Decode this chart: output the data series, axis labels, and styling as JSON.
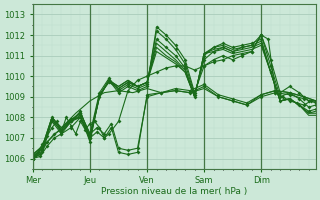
{
  "xlabel": "Pression niveau de la mer( hPa )",
  "ylim": [
    1005.5,
    1013.5
  ],
  "yticks": [
    1006,
    1007,
    1008,
    1009,
    1010,
    1011,
    1012,
    1013
  ],
  "day_labels": [
    "Mer",
    "Jeu",
    "Ven",
    "Sam",
    "Dim"
  ],
  "day_x": [
    0,
    24,
    48,
    72,
    96
  ],
  "xlim": [
    0,
    119
  ],
  "bg_color": "#cce8d8",
  "grid_major_color": "#aaccbb",
  "grid_minor_color": "#bbddcc",
  "line_color": "#1a6b1a",
  "tick_color": "#1a6b1a",
  "series": [
    {
      "x": [
        0,
        4,
        8,
        12,
        16,
        20,
        24,
        28,
        32,
        36,
        40,
        44,
        48,
        52,
        56,
        60,
        64,
        68,
        72,
        76,
        80,
        84,
        88,
        92,
        96,
        100,
        104,
        108,
        112,
        116,
        119
      ],
      "y": [
        1006.0,
        1006.3,
        1007.8,
        1007.2,
        1007.8,
        1008.3,
        1007.0,
        1009.0,
        1009.8,
        1009.2,
        1009.5,
        1009.3,
        1009.5,
        1012.4,
        1012.0,
        1011.5,
        1010.8,
        1009.2,
        1010.5,
        1010.8,
        1011.0,
        1010.8,
        1011.0,
        1011.2,
        1012.0,
        1010.8,
        1009.2,
        1009.5,
        1009.2,
        1008.8,
        1008.8
      ],
      "marker": true
    },
    {
      "x": [
        0,
        4,
        8,
        12,
        16,
        20,
        24,
        28,
        32,
        36,
        40,
        44,
        48,
        52,
        56,
        60,
        64,
        68,
        72,
        76,
        80,
        84,
        88,
        92,
        96,
        100,
        104,
        108,
        112,
        116,
        119
      ],
      "y": [
        1006.0,
        1006.4,
        1008.0,
        1007.4,
        1007.9,
        1008.2,
        1007.2,
        1009.2,
        1009.9,
        1009.3,
        1009.6,
        1009.4,
        1009.6,
        1012.2,
        1011.8,
        1011.3,
        1010.6,
        1009.1,
        1010.8,
        1011.2,
        1011.4,
        1011.2,
        1011.4,
        1011.5,
        1012.0,
        1010.5,
        1009.0,
        1009.2,
        1008.9,
        1008.5,
        1008.6
      ],
      "marker": true
    },
    {
      "x": [
        0,
        4,
        8,
        12,
        16,
        20,
        24,
        28,
        32,
        36,
        40,
        44,
        48,
        52,
        56,
        60,
        64,
        68,
        72,
        76,
        80,
        84,
        88,
        92,
        96,
        100,
        104,
        108,
        112,
        116,
        119
      ],
      "y": [
        1006.1,
        1006.5,
        1007.9,
        1007.3,
        1007.8,
        1008.1,
        1006.8,
        1009.1,
        1009.7,
        1009.4,
        1009.7,
        1009.5,
        1009.7,
        1011.8,
        1011.4,
        1011.0,
        1010.4,
        1009.0,
        1011.0,
        1011.4,
        1011.6,
        1011.4,
        1011.5,
        1011.6,
        1011.8,
        1010.2,
        1008.8,
        1008.9,
        1008.6,
        1008.3,
        1008.4
      ],
      "marker": true
    },
    {
      "x": [
        0,
        4,
        8,
        12,
        16,
        20,
        24,
        28,
        32,
        36,
        40,
        44,
        48,
        52,
        56,
        60,
        64,
        68,
        72,
        76,
        80,
        84,
        88,
        92,
        96,
        100,
        104,
        108,
        112,
        116,
        119
      ],
      "y": [
        1006.1,
        1006.5,
        1007.9,
        1007.3,
        1007.8,
        1008.0,
        1006.9,
        1009.0,
        1009.8,
        1009.4,
        1009.7,
        1009.5,
        1009.7,
        1011.6,
        1011.2,
        1010.8,
        1010.3,
        1009.0,
        1011.1,
        1011.4,
        1011.5,
        1011.3,
        1011.4,
        1011.5,
        1011.7,
        1010.2,
        1008.8,
        1008.9,
        1008.6,
        1008.2,
        1008.3
      ],
      "marker": false
    },
    {
      "x": [
        0,
        4,
        8,
        12,
        16,
        20,
        24,
        28,
        32,
        36,
        40,
        44,
        48,
        52,
        56,
        60,
        64,
        68,
        72,
        76,
        80,
        84,
        88,
        92,
        96,
        100,
        104,
        108,
        112,
        116,
        119
      ],
      "y": [
        1006.2,
        1006.6,
        1008.0,
        1007.4,
        1007.9,
        1008.0,
        1007.0,
        1009.1,
        1009.8,
        1009.5,
        1009.8,
        1009.5,
        1009.7,
        1011.4,
        1011.0,
        1010.7,
        1010.2,
        1009.0,
        1011.1,
        1011.3,
        1011.4,
        1011.2,
        1011.3,
        1011.4,
        1011.6,
        1010.2,
        1008.8,
        1008.9,
        1008.6,
        1008.2,
        1008.2
      ],
      "marker": false
    },
    {
      "x": [
        0,
        4,
        8,
        12,
        16,
        20,
        24,
        28,
        32,
        36,
        40,
        44,
        48,
        52,
        56,
        60,
        64,
        68,
        72,
        76,
        80,
        84,
        88,
        92,
        96,
        100,
        104,
        108,
        112,
        116,
        119
      ],
      "y": [
        1006.2,
        1006.6,
        1008.0,
        1007.5,
        1007.9,
        1008.0,
        1007.1,
        1009.0,
        1009.8,
        1009.5,
        1009.8,
        1009.5,
        1009.7,
        1011.2,
        1010.9,
        1010.6,
        1010.2,
        1009.0,
        1011.1,
        1011.2,
        1011.3,
        1011.1,
        1011.2,
        1011.3,
        1011.5,
        1010.2,
        1008.8,
        1008.9,
        1008.6,
        1008.1,
        1008.1
      ],
      "marker": false
    },
    {
      "x": [
        0,
        6,
        12,
        18,
        24,
        30,
        36,
        42,
        48,
        54,
        60,
        66,
        72,
        78,
        84,
        90,
        96,
        102,
        108,
        114,
        119
      ],
      "y": [
        1006.0,
        1006.8,
        1007.5,
        1008.2,
        1008.8,
        1009.2,
        1009.3,
        1009.2,
        1009.4,
        1009.2,
        1009.3,
        1009.2,
        1009.4,
        1009.0,
        1008.8,
        1008.6,
        1009.1,
        1009.3,
        1009.2,
        1009.0,
        1008.8
      ],
      "marker": false
    },
    {
      "x": [
        0,
        3,
        6,
        9,
        12,
        16,
        20,
        24,
        27,
        30,
        33,
        36,
        40,
        44,
        48,
        54,
        60,
        66,
        72,
        78,
        84,
        90,
        96,
        102,
        108,
        114,
        119
      ],
      "y": [
        1006.0,
        1006.1,
        1006.6,
        1007.0,
        1007.2,
        1007.5,
        1008.0,
        1007.0,
        1007.3,
        1007.0,
        1007.5,
        1006.3,
        1006.2,
        1006.3,
        1009.1,
        1009.2,
        1009.3,
        1009.2,
        1009.5,
        1009.0,
        1008.8,
        1008.6,
        1009.0,
        1009.2,
        1009.1,
        1008.9,
        1008.7
      ],
      "marker": true
    },
    {
      "x": [
        0,
        3,
        6,
        9,
        12,
        16,
        20,
        24,
        27,
        30,
        33,
        36,
        40,
        44,
        48,
        54,
        60,
        66,
        72,
        78,
        84,
        90,
        96,
        102,
        108,
        114,
        119
      ],
      "y": [
        1006.0,
        1006.2,
        1006.8,
        1007.2,
        1007.4,
        1007.8,
        1008.2,
        1007.2,
        1007.5,
        1007.2,
        1007.7,
        1006.5,
        1006.4,
        1006.5,
        1009.0,
        1009.2,
        1009.4,
        1009.3,
        1009.6,
        1009.1,
        1008.9,
        1008.7,
        1009.1,
        1009.3,
        1009.2,
        1009.0,
        1008.8
      ],
      "marker": true
    },
    {
      "x": [
        0,
        2,
        4,
        6,
        8,
        10,
        12,
        14,
        16,
        18,
        20,
        22,
        24,
        26,
        28,
        30,
        32,
        36,
        40,
        44,
        48,
        52,
        56,
        60,
        64,
        68,
        72,
        76,
        80,
        84,
        88,
        92,
        96,
        99,
        102,
        105,
        108,
        111,
        114,
        117,
        119
      ],
      "y": [
        1006.1,
        1006.3,
        1006.7,
        1007.1,
        1007.5,
        1007.8,
        1007.3,
        1008.0,
        1007.6,
        1007.2,
        1007.8,
        1007.4,
        1007.7,
        1007.8,
        1007.5,
        1007.0,
        1007.2,
        1007.8,
        1009.3,
        1009.8,
        1010.0,
        1010.2,
        1010.4,
        1010.5,
        1010.5,
        1010.3,
        1010.5,
        1010.7,
        1010.8,
        1011.0,
        1011.1,
        1011.2,
        1012.0,
        1011.8,
        1009.2,
        1009.0,
        1008.8,
        1008.7,
        1008.6,
        1008.8,
        1008.8
      ],
      "marker": true
    }
  ]
}
